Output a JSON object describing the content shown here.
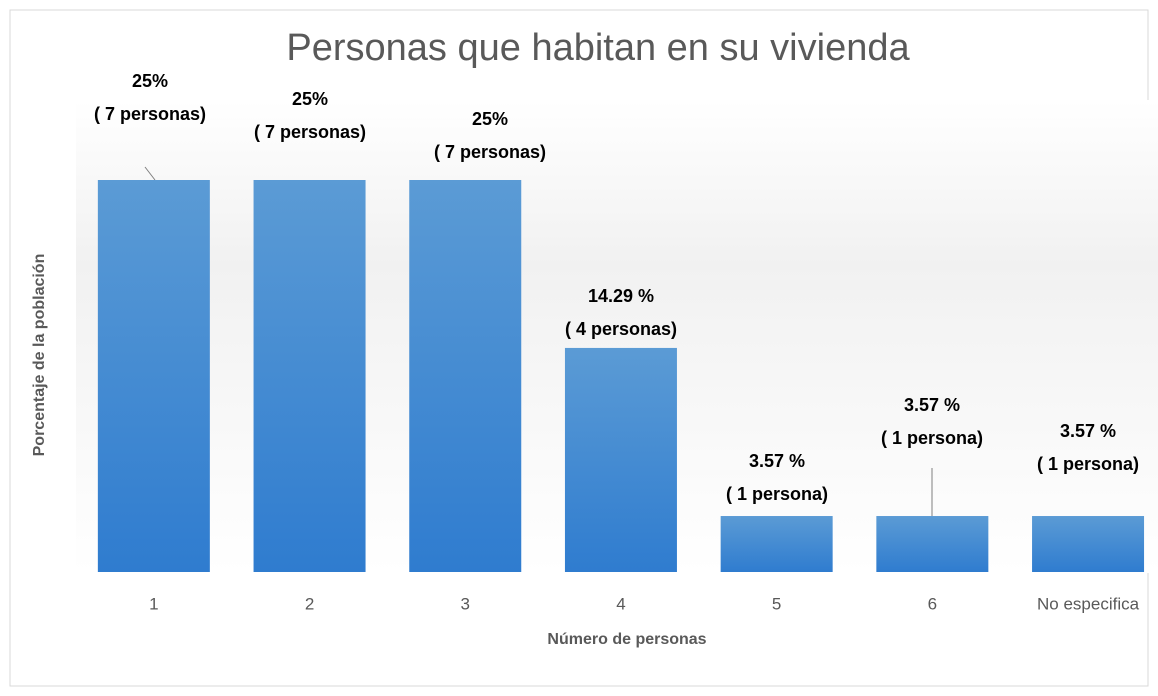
{
  "chart_data": {
    "type": "bar",
    "title": "Personas que habitan en su vivienda",
    "x_label": "Número de personas",
    "y_label": "Porcentaje de la población",
    "categories": [
      "1",
      "2",
      "3",
      "4",
      "5",
      "6",
      "No especifica"
    ],
    "values": [
      25,
      25,
      25,
      14.29,
      3.57,
      3.57,
      3.57
    ],
    "value_labels": [
      "25%",
      "25%",
      "25%",
      "14.29 %",
      "3.57 %",
      "3.57 %",
      "3.57 %"
    ],
    "annotations": [
      "( 7 personas)",
      "( 7 personas)",
      "( 7 personas)",
      "( 4 personas)",
      "( 1 persona)",
      "( 1 persona)",
      "( 1 persona)"
    ],
    "color": "#4a8fd6",
    "grid": false
  }
}
